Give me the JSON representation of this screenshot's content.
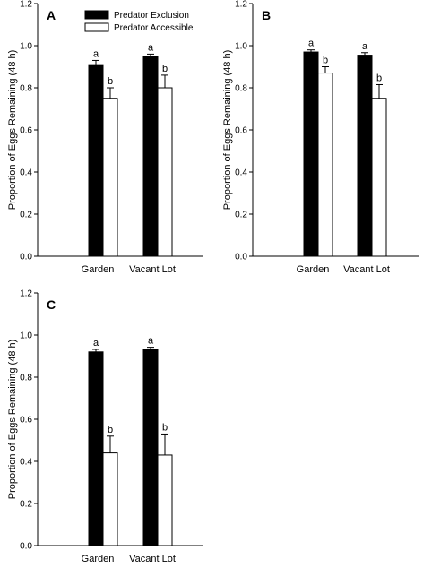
{
  "chart_data": [
    {
      "type": "bar",
      "panel_label": "A",
      "categories": [
        "Garden",
        "Vacant Lot"
      ],
      "ylabel": "Proportion of Eggs Remaining (48 h)",
      "xlabel": "",
      "ylim": [
        0,
        1.2
      ],
      "yticks": [
        "0.0",
        "0.2",
        "0.4",
        "0.6",
        "0.8",
        "1.0",
        "1.2"
      ],
      "grid": false,
      "legend": "top-left",
      "series": [
        {
          "name": "Predator Exclusion",
          "color": "#000000",
          "values": [
            0.91,
            0.95
          ],
          "errors": [
            0.02,
            0.01
          ],
          "letters": [
            "a",
            "a"
          ]
        },
        {
          "name": "Predator Accessible",
          "color": "#ffffff",
          "values": [
            0.75,
            0.8
          ],
          "errors": [
            0.05,
            0.06
          ],
          "letters": [
            "b",
            "b"
          ]
        }
      ]
    },
    {
      "type": "bar",
      "panel_label": "B",
      "categories": [
        "Garden",
        "Vacant Lot"
      ],
      "ylabel": "Proportion of Eggs Remaining (48 h)",
      "xlabel": "",
      "ylim": [
        0,
        1.2
      ],
      "yticks": [
        "0.0",
        "0.2",
        "0.4",
        "0.6",
        "0.8",
        "1.0",
        "1.2"
      ],
      "grid": false,
      "series": [
        {
          "color": "#000000",
          "values": [
            0.97,
            0.955
          ],
          "errors": [
            0.01,
            0.012
          ],
          "letters": [
            "a",
            "a"
          ]
        },
        {
          "color": "#ffffff",
          "values": [
            0.87,
            0.75
          ],
          "errors": [
            0.03,
            0.065
          ],
          "letters": [
            "b",
            "b"
          ]
        }
      ]
    },
    {
      "type": "bar",
      "panel_label": "C",
      "categories": [
        "Garden",
        "Vacant Lot"
      ],
      "ylabel": "Proportion of Eggs Remaining (48 h)",
      "xlabel": "",
      "ylim": [
        0,
        1.2
      ],
      "yticks": [
        "0.0",
        "0.2",
        "0.4",
        "0.6",
        "0.8",
        "1.0",
        "1.2"
      ],
      "grid": false,
      "series": [
        {
          "color": "#000000",
          "values": [
            0.92,
            0.93
          ],
          "errors": [
            0.012,
            0.012
          ],
          "letters": [
            "a",
            "a"
          ]
        },
        {
          "color": "#ffffff",
          "values": [
            0.44,
            0.43
          ],
          "errors": [
            0.08,
            0.1
          ],
          "letters": [
            "b",
            "b"
          ]
        }
      ]
    }
  ]
}
